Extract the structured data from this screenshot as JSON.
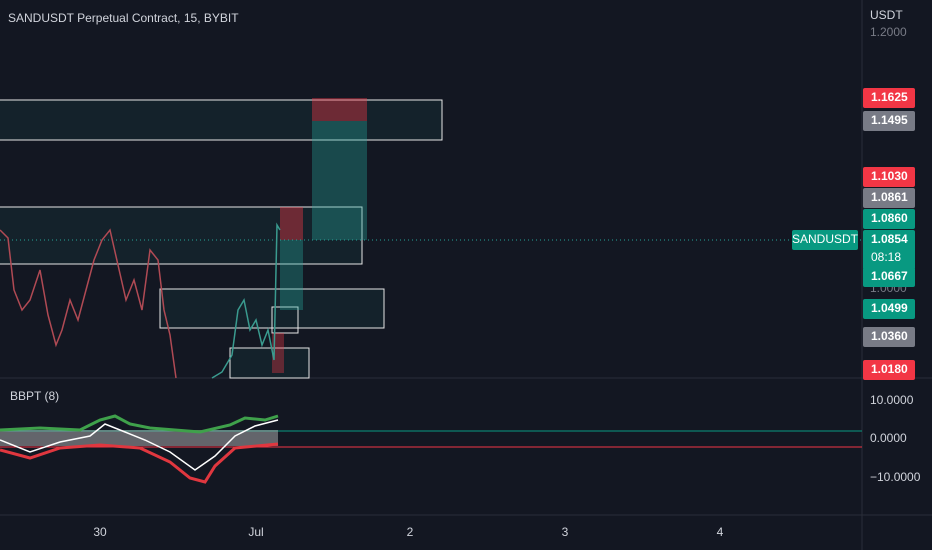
{
  "header": {
    "title": "SANDUSDT Perpetual Contract, 15, BYBIT"
  },
  "price_axis": {
    "currency": "USDT",
    "top_label": "1.2000",
    "hidden_label": "1.0000",
    "tags": [
      {
        "text": "1.1625",
        "kind": "red"
      },
      {
        "text": "1.1495",
        "kind": "gray"
      },
      {
        "text": "1.1030",
        "kind": "red"
      },
      {
        "text": "1.0861",
        "kind": "gray"
      },
      {
        "text": "1.0860",
        "kind": "green"
      },
      {
        "text": "1.0854",
        "kind": "green"
      },
      {
        "text": "1.0667",
        "kind": "green"
      },
      {
        "text": "1.0499",
        "kind": "green"
      },
      {
        "text": "1.0360",
        "kind": "gray"
      },
      {
        "text": "1.0180",
        "kind": "red"
      }
    ],
    "symbol_tag": "SANDUSDT",
    "countdown": "08:18"
  },
  "indicator": {
    "title": "BBPT (8)",
    "axis": [
      "10.0000",
      "0.0000",
      "−10.0000"
    ]
  },
  "time_axis": [
    "30",
    "Jul",
    "2",
    "3",
    "4"
  ]
}
